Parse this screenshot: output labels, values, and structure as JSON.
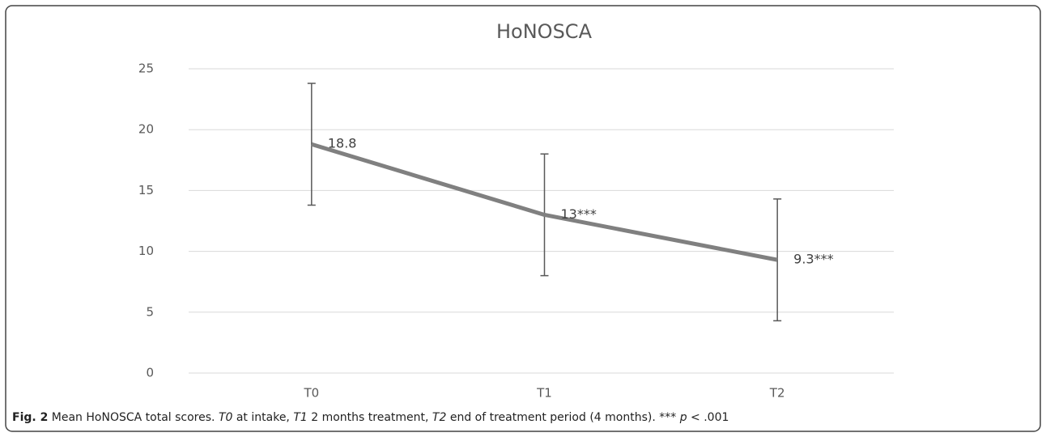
{
  "chart_data": {
    "type": "line",
    "title": "HoNOSCA",
    "categories": [
      "T0",
      "T1",
      "T2"
    ],
    "series": [
      {
        "name": "HoNOSCA",
        "color": "#808080",
        "values": [
          18.8,
          13,
          9.3
        ],
        "value_labels": [
          "18.8",
          "13***",
          "9.3***"
        ],
        "errors": [
          5,
          5,
          5
        ],
        "error_color": "#595959"
      }
    ],
    "ylim": [
      0,
      25
    ],
    "yticks": [
      0,
      5,
      10,
      15,
      20,
      25
    ],
    "grid": true
  },
  "caption": [
    {
      "text": "Fig. 2",
      "style": "bold"
    },
    {
      "text": " Mean HoNOSCA total scores. ",
      "style": "normal"
    },
    {
      "text": "T0",
      "style": "italic"
    },
    {
      "text": " at intake, ",
      "style": "normal"
    },
    {
      "text": "T1",
      "style": "italic"
    },
    {
      "text": " 2 months treatment, ",
      "style": "normal"
    },
    {
      "text": "T2",
      "style": "italic"
    },
    {
      "text": " end of treatment period (4 months). *** ",
      "style": "normal"
    },
    {
      "text": "p",
      "style": "italic"
    },
    {
      "text": " < .001",
      "style": "normal"
    }
  ]
}
